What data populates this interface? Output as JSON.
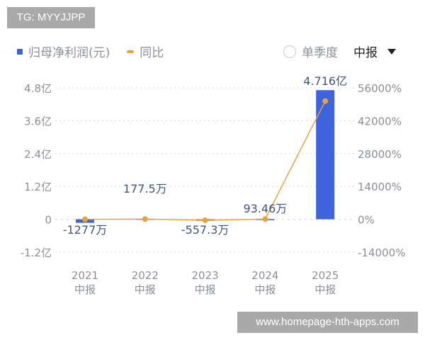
{
  "watermark_top": "TG: MYYJJPP",
  "watermark_bottom": "www.homepage-hth-apps.com",
  "legend": {
    "bar_label": "归母净利润(元)",
    "line_label": "同比"
  },
  "controls": {
    "single_quarter_label": "单季度",
    "period_label": "中报"
  },
  "colors": {
    "bar": "#3d63dd",
    "line": "#e8a23c",
    "label": "#3f5382",
    "axis": "#8a8f99"
  },
  "chart_data": {
    "type": "bar+line",
    "categories": [
      [
        "2021",
        "中报"
      ],
      [
        "2022",
        "中报"
      ],
      [
        "2023",
        "中报"
      ],
      [
        "2024",
        "中报"
      ],
      [
        "2025",
        "中报"
      ]
    ],
    "series": [
      {
        "name": "归母净利润(元)",
        "type": "bar",
        "unit": "亿",
        "values": [
          -0.1277,
          0.01775,
          -0.05573,
          0.009346,
          4.716
        ],
        "data_labels": [
          "-1277万",
          "177.5万",
          "-557.3万",
          "93.46万",
          "4.716亿"
        ]
      },
      {
        "name": "同比",
        "type": "line",
        "unit": "%",
        "values": [
          0,
          113.9,
          -414,
          116.8,
          50360
        ]
      }
    ],
    "left_axis": {
      "ticks": [
        "4.8亿",
        "3.6亿",
        "2.4亿",
        "1.2亿",
        "0",
        "-1.2亿"
      ],
      "values": [
        4.8,
        3.6,
        2.4,
        1.2,
        0,
        -1.2
      ],
      "ylim": [
        -1.2,
        4.8
      ]
    },
    "right_axis": {
      "ticks": [
        "56000%",
        "42000%",
        "28000%",
        "14000%",
        "0%",
        "-14000%"
      ],
      "values": [
        56000,
        42000,
        28000,
        14000,
        0,
        -14000
      ],
      "ylim": [
        -14000,
        56000
      ]
    },
    "grid": "dotted horizontal"
  }
}
